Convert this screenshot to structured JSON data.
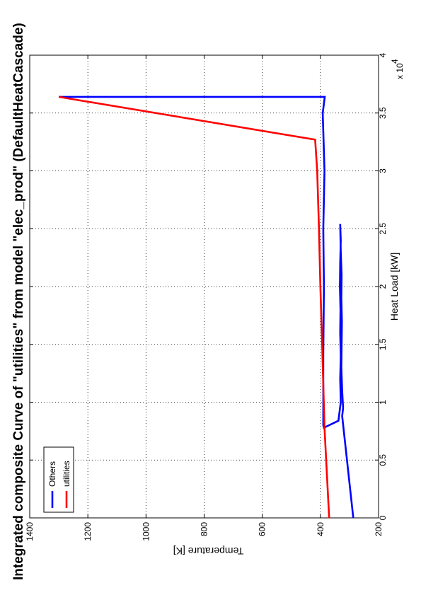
{
  "chart_data": {
    "type": "line",
    "title": "Integrated composite Curve of \"utilities\" from model \"elec_prod\" (DefaultHeatCascade)",
    "xlabel": "Heat Load [kW]",
    "ylabel": "Temperature [K]",
    "x_multiplier_label": "x 10",
    "x_multiplier_exponent": "4",
    "xlim": [
      0,
      40000
    ],
    "ylim": [
      200,
      1400
    ],
    "x_ticks": [
      0,
      5000,
      10000,
      15000,
      20000,
      25000,
      30000,
      35000,
      40000
    ],
    "x_tick_labels": [
      "0",
      "0.5",
      "1",
      "1.5",
      "2",
      "2.5",
      "3",
      "3.5",
      "4"
    ],
    "y_ticks": [
      200,
      400,
      600,
      800,
      1000,
      1200,
      1400
    ],
    "y_tick_labels": [
      "200",
      "400",
      "600",
      "800",
      "1000",
      "1200",
      "1400"
    ],
    "grid": true,
    "legend_position": "bottom-left",
    "series": [
      {
        "name": "Others",
        "color": "#0000ff",
        "points": [
          [
            0,
            287
          ],
          [
            8800,
            325
          ],
          [
            9500,
            322
          ],
          [
            11000,
            325
          ],
          [
            13000,
            328
          ],
          [
            15000,
            327
          ],
          [
            17000,
            326
          ],
          [
            19000,
            328
          ],
          [
            21000,
            327
          ],
          [
            23000,
            330
          ],
          [
            25400,
            332
          ],
          [
            24000,
            330
          ],
          [
            22000,
            332
          ],
          [
            20000,
            333
          ],
          [
            18000,
            331
          ],
          [
            16000,
            332
          ],
          [
            14000,
            330
          ],
          [
            12000,
            332
          ],
          [
            10000,
            330
          ],
          [
            8400,
            338
          ],
          [
            7800,
            388
          ],
          [
            8000,
            390
          ],
          [
            14000,
            390
          ],
          [
            20000,
            388
          ],
          [
            25000,
            390
          ],
          [
            30000,
            386
          ],
          [
            35000,
            392
          ],
          [
            36400,
            385
          ],
          [
            36400,
            1300
          ]
        ]
      },
      {
        "name": "utilities",
        "color": "#ff0000",
        "points": [
          [
            0,
            370
          ],
          [
            7800,
            386
          ],
          [
            15000,
            394
          ],
          [
            20000,
            400
          ],
          [
            25000,
            405
          ],
          [
            30000,
            411
          ],
          [
            32700,
            418
          ],
          [
            36400,
            1300
          ]
        ]
      }
    ]
  }
}
